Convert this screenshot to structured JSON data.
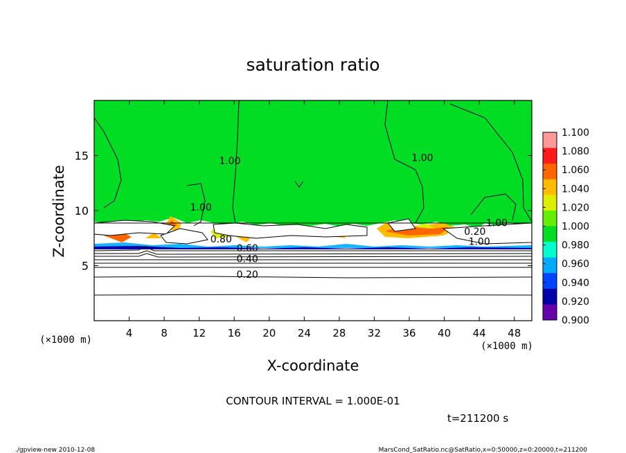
{
  "chart_data": {
    "type": "heatmap",
    "title": "saturation ratio",
    "xlabel": "X-coordinate",
    "ylabel": "Z-coordinate",
    "x_unit_left": "(×1000 m)",
    "x_unit_right": "(×1000 m)",
    "xlim": [
      0,
      50
    ],
    "ylim": [
      0,
      20
    ],
    "x_ticks": [
      "4",
      "8",
      "12",
      "16",
      "20",
      "24",
      "28",
      "32",
      "36",
      "40",
      "44",
      "48"
    ],
    "x_tick_values": [
      4,
      8,
      12,
      16,
      20,
      24,
      28,
      32,
      36,
      40,
      44,
      48
    ],
    "y_ticks": [
      "5",
      "10",
      "15"
    ],
    "y_tick_values": [
      5,
      10,
      15
    ],
    "colorbar": {
      "levels": [
        "0.900",
        "0.920",
        "0.940",
        "0.960",
        "0.980",
        "1.000",
        "1.020",
        "1.040",
        "1.060",
        "1.080",
        "1.100"
      ],
      "colors": [
        "#6600aa",
        "#0000aa",
        "#0044ff",
        "#00aaff",
        "#00ffcc",
        "#00dd22",
        "#66ee00",
        "#ddee00",
        "#ffbb00",
        "#ff6600",
        "#ff1a1a",
        "#ff9999"
      ]
    },
    "contour_labels": [
      {
        "text": "1.00",
        "x": 15.5,
        "z": 14.2
      },
      {
        "text": "1.00",
        "x": 37.5,
        "z": 14.5
      },
      {
        "text": "1.00",
        "x": 12.2,
        "z": 10.0
      },
      {
        "text": "1.00",
        "x": 46.0,
        "z": 8.6
      },
      {
        "text": "1.00",
        "x": 44.0,
        "z": 6.9
      },
      {
        "text": "0.20",
        "x": 43.5,
        "z": 7.8
      },
      {
        "text": "0.80",
        "x": 14.5,
        "z": 7.1
      },
      {
        "text": "0.60",
        "x": 17.5,
        "z": 6.3
      },
      {
        "text": "0.40",
        "x": 17.5,
        "z": 5.3
      },
      {
        "text": "0.20",
        "x": 17.5,
        "z": 3.9
      }
    ],
    "grid": false,
    "legend": "right"
  },
  "footer": {
    "contour_interval": "CONTOUR INTERVAL = 1.000E-01",
    "time": "t=211200 s",
    "program": "./gpview-new  2010-12-08",
    "source": "MarsCond_SatRatio.nc@SatRatio,x=0:50000,z=0:20000,t=211200"
  }
}
